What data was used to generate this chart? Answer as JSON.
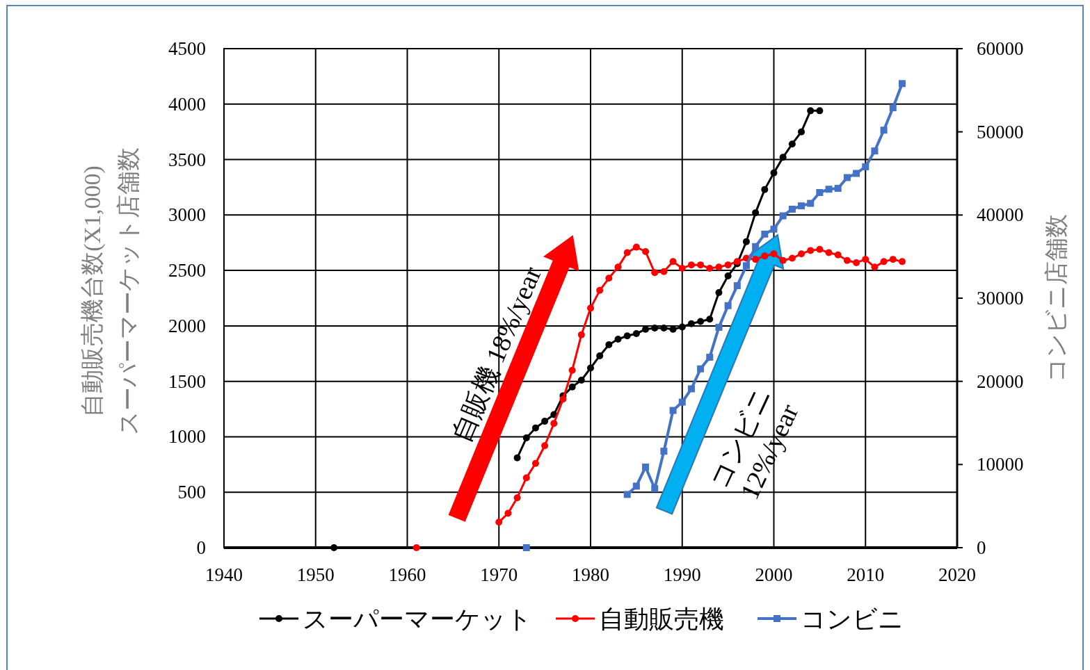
{
  "chart_data": {
    "type": "line",
    "ylabel": "自動販売機台数(X1,000)\nスーパーマーケット店舗数",
    "y2label": "コンビニ店舗数",
    "xlim": [
      1940,
      2020
    ],
    "xticks": [
      1940,
      1950,
      1960,
      1970,
      1980,
      1990,
      2000,
      2010,
      2020
    ],
    "ylim": [
      0,
      4500
    ],
    "yticks": [
      0,
      500,
      1000,
      1500,
      2000,
      2500,
      3000,
      3500,
      4000,
      4500
    ],
    "y2lim": [
      0,
      60000
    ],
    "y2ticks": [
      0,
      10000,
      20000,
      30000,
      40000,
      50000,
      60000
    ],
    "grid": true,
    "legend": "bottom",
    "line_style": "solid",
    "annotations": [
      "自販機 18%/year",
      "コンビニ\n12%/year"
    ],
    "series": [
      {
        "name": "スーパーマーケット",
        "color": "#000000",
        "marker": "circle",
        "x": [
          1972,
          1973,
          1974,
          1975,
          1976,
          1977,
          1978,
          1979,
          1980,
          1981,
          1982,
          1983,
          1984,
          1985,
          1986,
          1987,
          1988,
          1989,
          1990,
          1991,
          1992,
          1993,
          1994,
          1995,
          1996,
          1997,
          1998,
          1999,
          2000,
          2001,
          2002,
          2003,
          2004,
          2005
        ],
        "values": [
          810,
          990,
          1080,
          1140,
          1200,
          1370,
          1450,
          1510,
          1620,
          1730,
          1830,
          1880,
          1910,
          1930,
          1970,
          1980,
          1980,
          1970,
          1990,
          2020,
          2040,
          2060,
          2300,
          2450,
          2560,
          2760,
          3020,
          3230,
          3380,
          3520,
          3640,
          3750,
          3940,
          3940
        ]
      },
      {
        "name": "自動販売機",
        "color": "#ff0000",
        "marker": "circle",
        "x": [
          1970,
          1971,
          1972,
          1973,
          1974,
          1975,
          1976,
          1977,
          1978,
          1979,
          1980,
          1981,
          1982,
          1983,
          1984,
          1985,
          1986,
          1987,
          1988,
          1989,
          1990,
          1991,
          1992,
          1993,
          1994,
          1995,
          1996,
          1997,
          1998,
          1999,
          2000,
          2001,
          2002,
          2003,
          2004,
          2005,
          2006,
          2007,
          2008,
          2009,
          2010,
          2011,
          2012,
          2013,
          2014
        ],
        "values": [
          230,
          310,
          450,
          630,
          760,
          920,
          1120,
          1340,
          1600,
          1920,
          2160,
          2320,
          2430,
          2530,
          2660,
          2710,
          2670,
          2480,
          2490,
          2580,
          2520,
          2550,
          2550,
          2520,
          2530,
          2550,
          2580,
          2610,
          2600,
          2630,
          2650,
          2590,
          2610,
          2650,
          2680,
          2690,
          2660,
          2640,
          2590,
          2570,
          2600,
          2530,
          2580,
          2600,
          2580
        ]
      },
      {
        "name": "コンビニ",
        "color": "#4472c4",
        "marker": "square",
        "axis": "y2",
        "x": [
          1984,
          1985,
          1986,
          1987,
          1988,
          1989,
          1990,
          1991,
          1992,
          1993,
          1994,
          1995,
          1996,
          1997,
          1998,
          1999,
          2000,
          2001,
          2002,
          2003,
          2004,
          2005,
          2006,
          2007,
          2008,
          2009,
          2010,
          2011,
          2012,
          2013,
          2014
        ],
        "values": [
          6400,
          7400,
          9700,
          7100,
          11600,
          16500,
          17500,
          19100,
          21500,
          22900,
          26500,
          29100,
          31500,
          33900,
          36200,
          37700,
          38300,
          39900,
          40700,
          41100,
          41400,
          42700,
          43100,
          43200,
          44500,
          45000,
          45800,
          47700,
          50200,
          52900,
          55800
        ]
      },
      {
        "type": "scatter",
        "color": "#000000",
        "marker": "circle",
        "x": [
          1952
        ],
        "values": [
          0
        ]
      },
      {
        "type": "scatter",
        "color": "#ff0000",
        "marker": "circle",
        "x": [
          1961
        ],
        "values": [
          0
        ]
      },
      {
        "type": "scatter",
        "color": "#4472c4",
        "marker": "square",
        "axis": "y2",
        "x": [
          1973
        ],
        "values": [
          0
        ]
      }
    ]
  }
}
